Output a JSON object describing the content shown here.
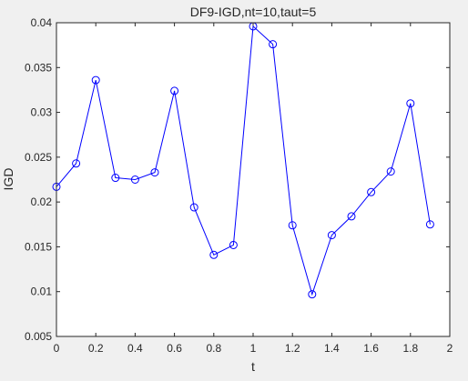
{
  "chart_data": {
    "type": "line",
    "title": "DF9-IGD,nt=10,taut=5",
    "xlabel": "t",
    "ylabel": "IGD",
    "xlim": [
      0,
      2
    ],
    "ylim": [
      0.005,
      0.04
    ],
    "xticks": [
      0,
      0.2,
      0.4,
      0.6,
      0.8,
      1,
      1.2,
      1.4,
      1.6,
      1.8,
      2
    ],
    "xtick_labels": [
      "0",
      "0.2",
      "0.4",
      "0.6",
      "0.8",
      "1",
      "1.2",
      "1.4",
      "1.6",
      "1.8",
      "2"
    ],
    "yticks": [
      0.005,
      0.01,
      0.015,
      0.02,
      0.025,
      0.03,
      0.035,
      0.04
    ],
    "ytick_labels": [
      "0.005",
      "0.01",
      "0.015",
      "0.02",
      "0.025",
      "0.03",
      "0.035",
      "0.04"
    ],
    "grid": false,
    "marker": "circle",
    "line_color": "#0000ff",
    "series": [
      {
        "x": [
          0,
          0.1,
          0.2,
          0.3,
          0.4,
          0.5,
          0.6,
          0.7,
          0.8,
          0.9,
          1.0,
          1.1,
          1.2,
          1.3,
          1.4,
          1.5,
          1.6,
          1.7,
          1.8,
          1.9
        ],
        "values": [
          0.0217,
          0.0243,
          0.0336,
          0.0227,
          0.0225,
          0.0233,
          0.0324,
          0.0194,
          0.0141,
          0.0152,
          0.0396,
          0.0376,
          0.0174,
          0.0097,
          0.0163,
          0.0184,
          0.0211,
          0.0234,
          0.031,
          0.0175
        ]
      }
    ]
  }
}
